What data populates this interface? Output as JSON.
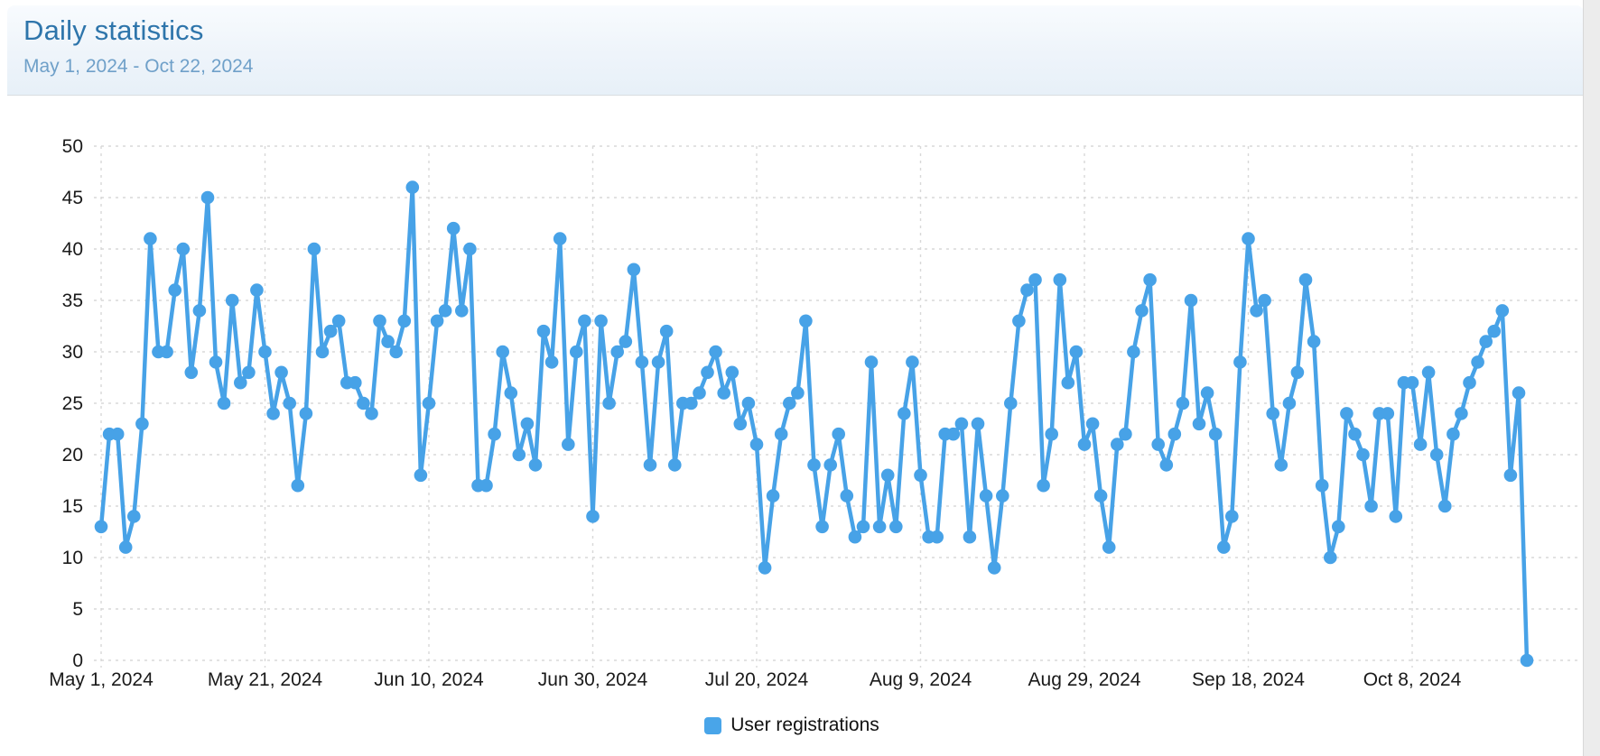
{
  "header": {
    "title": "Daily statistics",
    "subtitle": "May 1, 2024 - Oct 22, 2024"
  },
  "legend": {
    "items": [
      {
        "label": "User registrations",
        "color": "#49a5e9"
      }
    ]
  },
  "colors": {
    "line": "#47a2e7",
    "point": "#47a2e7",
    "grid": "#d8d8d8",
    "axis_text": "#1a1a1a",
    "title_text": "#2e75ab",
    "subtitle_text": "#6fa0c9",
    "header_bg_top": "#f8fbfe",
    "header_bg_bottom": "#e7f0f8",
    "gutter_bg": "#ececec"
  },
  "chart_data": {
    "type": "line",
    "title": "Daily statistics",
    "xlabel": "",
    "ylabel": "",
    "ylim": [
      0,
      50
    ],
    "grid": "dashed",
    "legend_position": "bottom",
    "y_ticks": [
      0,
      5,
      10,
      15,
      20,
      25,
      30,
      35,
      40,
      45,
      50
    ],
    "x_tick_labels": [
      "May 1, 2024",
      "May 21, 2024",
      "Jun 10, 2024",
      "Jun 30, 2024",
      "Jul 20, 2024",
      "Aug 9, 2024",
      "Aug 29, 2024",
      "Sep 18, 2024",
      "Oct 8, 2024"
    ],
    "x_tick_interval_days": 20,
    "date_range": {
      "start": "May 1, 2024",
      "end": "Oct 22, 2024"
    },
    "series": [
      {
        "name": "User registrations",
        "color": "#47a2e7",
        "values": [
          13,
          22,
          22,
          11,
          14,
          23,
          41,
          30,
          30,
          36,
          40,
          28,
          34,
          45,
          29,
          25,
          35,
          27,
          28,
          36,
          30,
          24,
          28,
          25,
          17,
          24,
          40,
          30,
          32,
          33,
          27,
          27,
          25,
          24,
          33,
          31,
          30,
          33,
          46,
          18,
          25,
          33,
          34,
          42,
          34,
          40,
          17,
          17,
          22,
          30,
          26,
          20,
          23,
          19,
          32,
          29,
          41,
          21,
          30,
          33,
          14,
          33,
          25,
          30,
          31,
          38,
          29,
          19,
          29,
          32,
          19,
          25,
          25,
          26,
          28,
          30,
          26,
          28,
          23,
          25,
          21,
          9,
          16,
          22,
          25,
          26,
          33,
          19,
          13,
          19,
          22,
          16,
          12,
          13,
          29,
          13,
          18,
          13,
          24,
          29,
          18,
          12,
          12,
          22,
          22,
          23,
          12,
          23,
          16,
          9,
          16,
          25,
          33,
          36,
          37,
          17,
          22,
          37,
          27,
          30,
          21,
          23,
          16,
          11,
          21,
          22,
          30,
          34,
          37,
          21,
          19,
          22,
          25,
          35,
          23,
          26,
          22,
          11,
          14,
          29,
          41,
          34,
          35,
          24,
          19,
          25,
          28,
          37,
          31,
          17,
          10,
          13,
          24,
          22,
          20,
          15,
          24,
          24,
          14,
          27,
          27,
          21,
          28,
          20,
          15,
          22,
          24,
          27,
          29,
          31,
          32,
          34,
          18,
          26,
          0
        ]
      }
    ]
  }
}
